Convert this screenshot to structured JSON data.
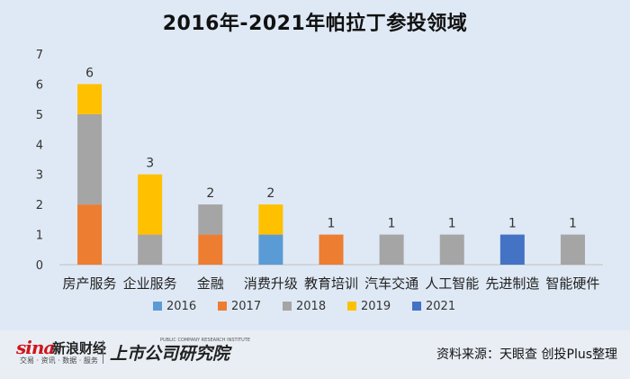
{
  "chart_data": {
    "type": "bar",
    "stacked": true,
    "title": "2016年-2021年帕拉丁参投领域",
    "categories": [
      "房产服务",
      "企业服务",
      "金融",
      "消费升级",
      "教育培训",
      "汽车交通",
      "人工智能",
      "先进制造",
      "智能硬件"
    ],
    "series": [
      {
        "name": "2016",
        "color": "#5b9bd5",
        "values": [
          0,
          0,
          0,
          1,
          0,
          0,
          0,
          0,
          0
        ]
      },
      {
        "name": "2017",
        "color": "#ed7d31",
        "values": [
          2,
          0,
          1,
          0,
          1,
          0,
          0,
          0,
          0
        ]
      },
      {
        "name": "2018",
        "color": "#a5a5a5",
        "values": [
          3,
          1,
          1,
          0,
          0,
          1,
          1,
          0,
          1
        ]
      },
      {
        "name": "2019",
        "color": "#ffc000",
        "values": [
          1,
          2,
          0,
          1,
          0,
          0,
          0,
          0,
          0
        ]
      },
      {
        "name": "2021",
        "color": "#4472c4",
        "values": [
          0,
          0,
          0,
          0,
          0,
          0,
          0,
          1,
          0
        ]
      }
    ],
    "totals": [
      6,
      3,
      2,
      2,
      1,
      1,
      1,
      1,
      1
    ],
    "ylim": [
      0,
      7
    ],
    "yticks": [
      0,
      1,
      2,
      3,
      4,
      5,
      6,
      7
    ],
    "grid": false,
    "legend": "bottom"
  },
  "footer": {
    "sina_mark": "sina",
    "sina_name": "新浪财经",
    "sina_tagline": "交易 · 资讯 · 数据 · 服务",
    "institute_name": "上市公司研究院",
    "institute_en": "PUBLIC COMPANY RESEARCH INSTITUTE",
    "source": "资料来源：天眼查 创投Plus整理"
  }
}
